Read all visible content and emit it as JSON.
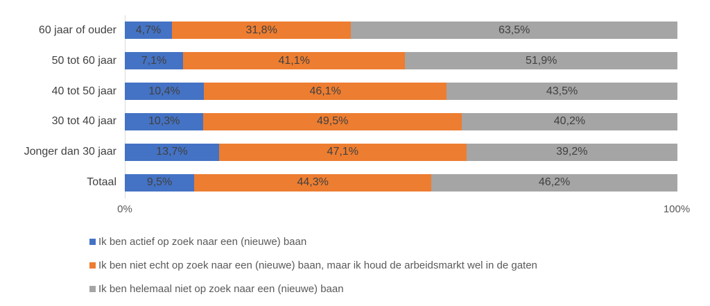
{
  "chart_data": {
    "type": "bar",
    "orientation": "horizontal",
    "stacked": true,
    "title": "",
    "xlabel": "",
    "ylabel": "",
    "xlim": [
      0,
      100
    ],
    "grid": false,
    "legend_position": "bottom",
    "categories": [
      "60 jaar of ouder",
      "50 tot 60 jaar",
      "40 tot 50 jaar",
      "30 tot 40 jaar",
      "Jonger dan 30 jaar",
      "Totaal"
    ],
    "series": [
      {
        "name": "Ik ben actief op zoek naar een (nieuwe) baan",
        "color": "#4472C4",
        "values": [
          4.7,
          7.1,
          10.4,
          10.3,
          13.7,
          9.5
        ],
        "labels": [
          "4,7%",
          "7,1%",
          "10,4%",
          "10,3%",
          "13,7%",
          "9,5%"
        ]
      },
      {
        "name": "Ik ben niet echt op zoek naar een (nieuwe) baan, maar ik houd de arbeidsmarkt wel in de gaten",
        "color": "#ED7D31",
        "values": [
          31.8,
          41.1,
          46.1,
          49.5,
          47.1,
          44.3
        ],
        "labels": [
          "31,8%",
          "41,1%",
          "46,1%",
          "49,5%",
          "47,1%",
          "44,3%"
        ]
      },
      {
        "name": "Ik ben helemaal niet op zoek naar een (nieuwe) baan",
        "color": "#A5A5A5",
        "values": [
          63.5,
          51.9,
          43.5,
          40.2,
          39.2,
          46.2
        ],
        "labels": [
          "63,5%",
          "51,9%",
          "43,5%",
          "40,2%",
          "39,2%",
          "46,2%"
        ]
      }
    ],
    "x_axis": {
      "ticks": [
        "0%",
        "100%"
      ]
    }
  }
}
